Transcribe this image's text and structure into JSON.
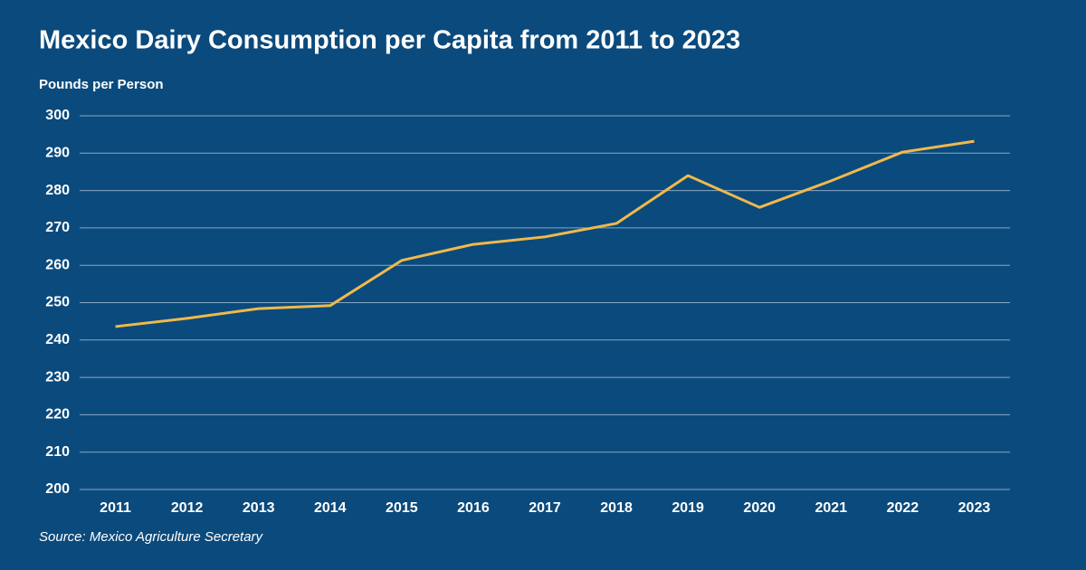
{
  "chart_data": {
    "type": "line",
    "title": "Mexico Dairy Consumption per Capita from 2011 to 2023",
    "y_label": "Pounds per Person",
    "source": "Source: Mexico Agriculture Secretary",
    "categories": [
      "2011",
      "2012",
      "2013",
      "2014",
      "2015",
      "2016",
      "2017",
      "2018",
      "2019",
      "2020",
      "2021",
      "2022",
      "2023"
    ],
    "series": [
      {
        "name": "Pounds per Person",
        "color": "#f0b94b",
        "values": [
          243.6,
          245.8,
          248.4,
          249.2,
          261.3,
          265.6,
          267.6,
          271.2,
          284.0,
          275.5,
          282.6,
          290.3,
          293.2
        ]
      }
    ],
    "ylim": [
      200,
      300
    ],
    "yticks": [
      200,
      210,
      220,
      230,
      240,
      250,
      260,
      270,
      280,
      290,
      300
    ],
    "grid": true
  }
}
